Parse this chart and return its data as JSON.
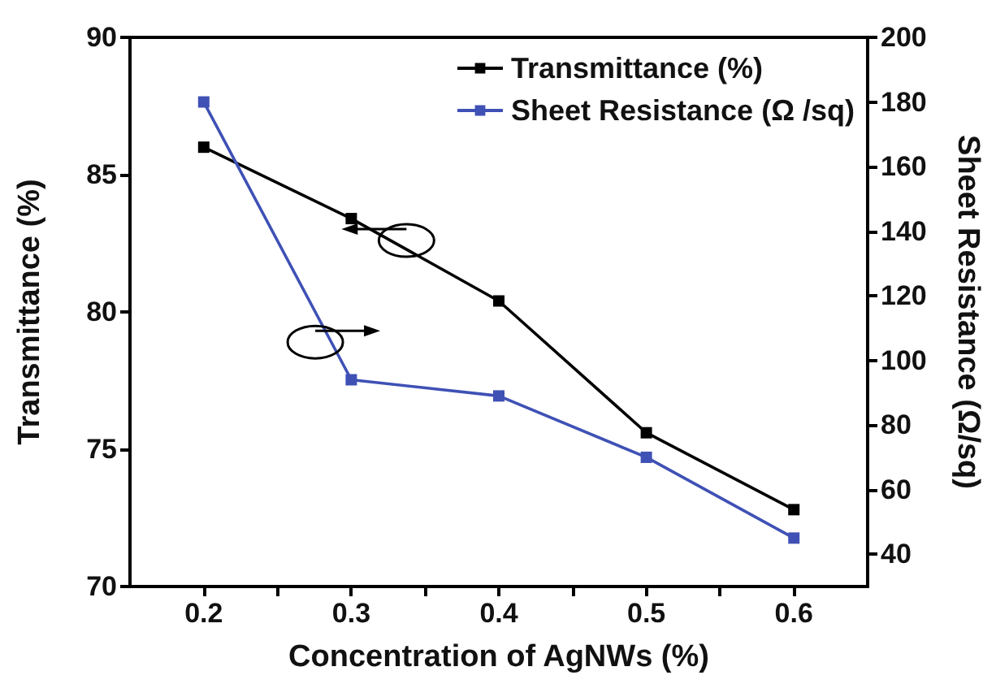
{
  "chart_data": {
    "type": "line",
    "xlabel": "Concentration of AgNWs (%)",
    "ylabel": "Transmittance (%)",
    "y2label": "Sheet Resistance (Ω/sq)",
    "x": [
      0.2,
      0.3,
      0.4,
      0.5,
      0.6
    ],
    "series": [
      {
        "name": "Transmittance (%)",
        "color": "#000000",
        "values": [
          86.0,
          83.4,
          80.4,
          75.6,
          72.8
        ]
      },
      {
        "name": "Sheet Resistance (Ω /sq)",
        "color": "#3f51b5",
        "axis": "y2",
        "values": [
          180,
          94,
          89,
          70,
          45
        ]
      }
    ],
    "xlim": [
      0.15,
      0.65
    ],
    "xticks": [
      0.2,
      {
        "value": 0.25,
        "label": null
      },
      0.3,
      {
        "value": 0.35,
        "label": null
      },
      0.4,
      {
        "value": 0.45,
        "label": null
      },
      0.5,
      {
        "value": 0.55,
        "label": null
      },
      0.6
    ],
    "ylim": [
      70,
      90
    ],
    "yticks": [
      70,
      75,
      80,
      85,
      90
    ],
    "y2lim": [
      30,
      200
    ],
    "y2ticks": [
      40,
      60,
      80,
      100,
      120,
      140,
      160,
      180,
      200
    ],
    "legend": "top right",
    "marker": "square",
    "line_style": "solid",
    "grid": false
  }
}
